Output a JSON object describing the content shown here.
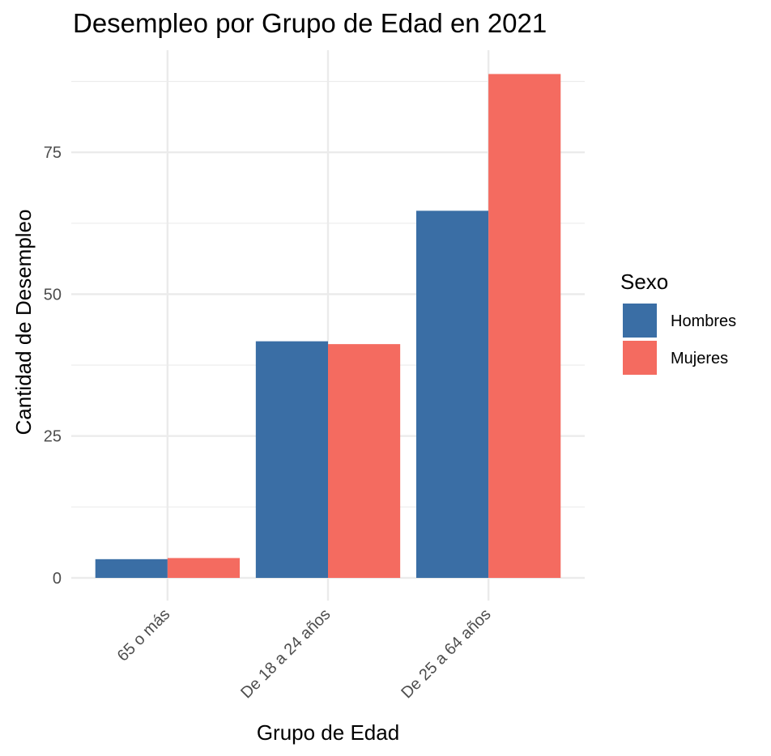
{
  "chart_data": {
    "type": "bar",
    "title": "Desempleo por Grupo de Edad en 2021",
    "xlabel": "Grupo de Edad",
    "ylabel": "Cantidad de Desempleo",
    "categories": [
      "65 o más",
      "De 18 a 24 años",
      "De 25 a 64 años"
    ],
    "series": [
      {
        "name": "Hombres",
        "color": "#3A6EA5",
        "values": [
          3.3,
          41.7,
          64.7
        ]
      },
      {
        "name": "Mujeres",
        "color": "#F46B60",
        "values": [
          3.5,
          41.2,
          88.8
        ]
      }
    ],
    "yticks": [
      0,
      25,
      50,
      75
    ],
    "ylim": [
      -4,
      93
    ],
    "grid": true,
    "legend": {
      "title": "Sexo",
      "position": "right"
    }
  }
}
